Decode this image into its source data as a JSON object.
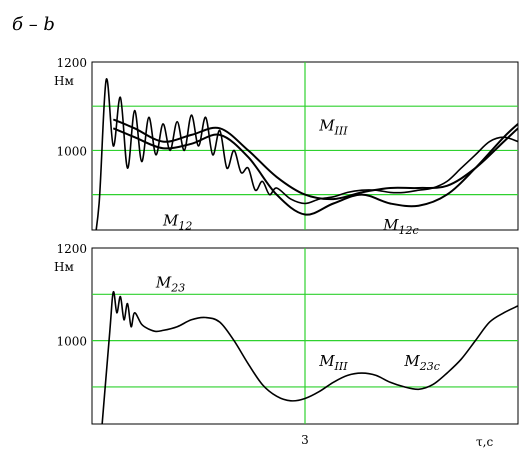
{
  "figure": {
    "caption": "б – b"
  },
  "chart_data": [
    {
      "type": "line",
      "unit": "Нм",
      "ylim": [
        820,
        1200
      ],
      "y_ticks": [
        {
          "value": 1200,
          "label": "1200"
        },
        {
          "value": 1100,
          "label": ""
        },
        {
          "value": 1000,
          "label": "1000"
        },
        {
          "value": 900,
          "label": ""
        }
      ],
      "xlim": [
        0,
        6
      ],
      "grid": true,
      "annotations": [
        {
          "text": "M",
          "sub": "12",
          "x": 1.0,
          "y": 830
        },
        {
          "text": "M",
          "sub": "III",
          "x": 3.2,
          "y": 1045
        },
        {
          "text": "M",
          "sub": "12c",
          "x": 4.1,
          "y": 820
        }
      ],
      "series": [
        {
          "label_ref": "M12 (oscillating)",
          "x": [
            0.0,
            0.1,
            0.2,
            0.3,
            0.4,
            0.5,
            0.6,
            0.7,
            0.8,
            0.9,
            1.0,
            1.1,
            1.2,
            1.3,
            1.4,
            1.5,
            1.6,
            1.7,
            1.8,
            1.9,
            2.0,
            2.1,
            2.2,
            2.3,
            2.4,
            2.5,
            2.6,
            2.8,
            3.0,
            3.2,
            3.4,
            3.6,
            3.8,
            4.0,
            4.2,
            4.4,
            4.6,
            4.8,
            5.0,
            5.2,
            5.4,
            5.6,
            5.8,
            6.0
          ],
          "y": [
            760,
            880,
            1160,
            1010,
            1120,
            960,
            1090,
            975,
            1075,
            990,
            1060,
            1000,
            1065,
            1000,
            1080,
            1010,
            1075,
            990,
            1045,
            960,
            1000,
            950,
            960,
            910,
            930,
            900,
            915,
            890,
            880,
            890,
            895,
            905,
            910,
            910,
            905,
            905,
            910,
            915,
            930,
            960,
            990,
            1020,
            1030,
            1020
          ]
        },
        {
          "label_ref": "M12c (upper)",
          "x": [
            0.3,
            0.6,
            1.0,
            1.4,
            1.8,
            2.2,
            2.6,
            3.0,
            3.4,
            3.8,
            4.2,
            4.6,
            5.0,
            5.4,
            5.8,
            6.0
          ],
          "y": [
            1070,
            1050,
            1020,
            1035,
            1050,
            1000,
            940,
            900,
            890,
            905,
            915,
            915,
            920,
            960,
            1020,
            1050
          ]
        },
        {
          "label_ref": "M12c (lower)",
          "x": [
            0.3,
            0.6,
            1.0,
            1.4,
            1.8,
            2.2,
            2.6,
            3.0,
            3.4,
            3.8,
            4.2,
            4.6,
            5.0,
            5.4,
            5.8,
            6.0
          ],
          "y": [
            1050,
            1030,
            1005,
            1015,
            1035,
            985,
            900,
            855,
            880,
            900,
            880,
            875,
            900,
            960,
            1030,
            1060
          ]
        }
      ]
    },
    {
      "type": "line",
      "unit": "Нм",
      "ylim": [
        820,
        1200
      ],
      "y_ticks": [
        {
          "value": 1200,
          "label": "1200"
        },
        {
          "value": 1100,
          "label": ""
        },
        {
          "value": 1000,
          "label": "1000"
        },
        {
          "value": 900,
          "label": ""
        }
      ],
      "xlim": [
        0,
        6
      ],
      "x_ticks": [
        {
          "value": 3,
          "label": "3"
        }
      ],
      "xlabel": "τ,c",
      "grid": true,
      "annotations": [
        {
          "text": "M",
          "sub": "23",
          "x": 0.9,
          "y": 1115
        },
        {
          "text": "M",
          "sub": "III",
          "x": 3.2,
          "y": 945
        },
        {
          "text": "M",
          "sub": "23c",
          "x": 4.4,
          "y": 945
        }
      ],
      "series": [
        {
          "label_ref": "M23",
          "x": [
            0.1,
            0.25,
            0.3,
            0.35,
            0.4,
            0.45,
            0.5,
            0.55,
            0.6,
            0.7,
            0.8,
            0.9,
            1.0,
            1.2,
            1.4,
            1.6,
            1.8,
            2.0,
            2.2,
            2.4,
            2.6,
            2.8,
            3.0,
            3.2,
            3.4,
            3.6,
            3.8,
            4.0,
            4.2,
            4.4,
            4.6,
            4.8,
            5.0,
            5.2,
            5.4,
            5.6,
            5.8,
            6.0
          ],
          "y": [
            740,
            1020,
            1105,
            1060,
            1095,
            1045,
            1080,
            1030,
            1060,
            1035,
            1025,
            1020,
            1022,
            1030,
            1045,
            1050,
            1040,
            1000,
            950,
            905,
            880,
            870,
            875,
            890,
            910,
            925,
            930,
            925,
            910,
            900,
            895,
            905,
            930,
            960,
            1000,
            1040,
            1060,
            1075
          ]
        }
      ]
    }
  ]
}
